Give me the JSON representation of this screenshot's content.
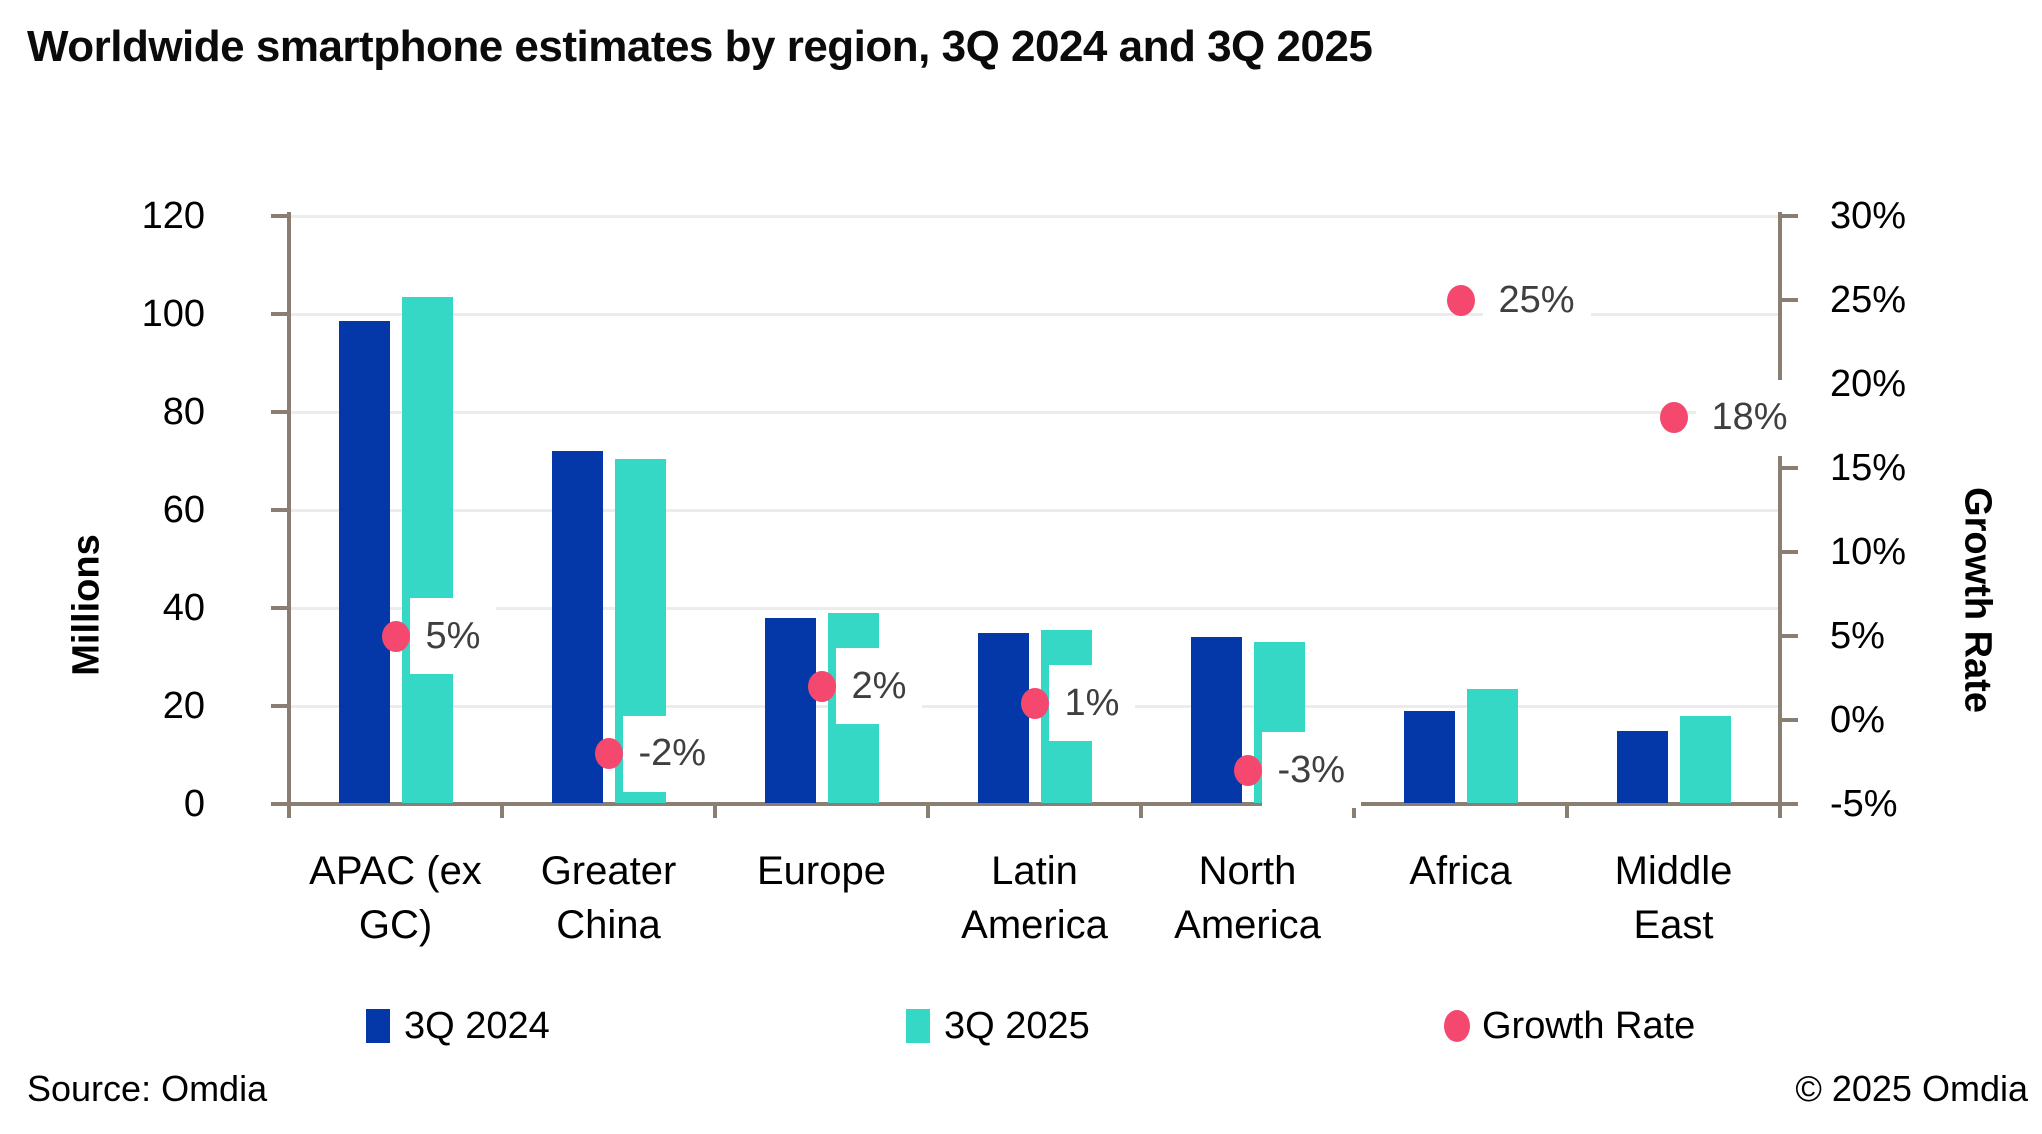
{
  "title": "Worldwide smartphone estimates by region, 3Q 2024 and 3Q 2025",
  "footer": {
    "source": "Source: Omdia",
    "copyright": "© 2025 Omdia"
  },
  "colors": {
    "bar_2024": "#0438a8",
    "bar_2025": "#35d8c5",
    "growth_dot": "#f4486f",
    "axis": "#8a7d72",
    "gridline": "#ececec",
    "data_label_text": "#3f3f3f"
  },
  "chart_data": {
    "type": "combo_bar_scatter",
    "title": "Worldwide smartphone estimates by region, 3Q 2024 and 3Q 2025",
    "categories": [
      "APAC (ex GC)",
      "Greater China",
      "Europe",
      "Latin America",
      "North America",
      "Africa",
      "Middle East"
    ],
    "category_label_lines": [
      [
        "APAC (ex",
        "GC)"
      ],
      [
        "Greater",
        "China"
      ],
      [
        "Europe"
      ],
      [
        "Latin",
        "America"
      ],
      [
        "North",
        "America"
      ],
      [
        "Africa"
      ],
      [
        "Middle",
        "East"
      ]
    ],
    "series": [
      {
        "name": "3Q 2024",
        "type": "bar",
        "axis": "left",
        "color_key": "bar_2024",
        "values": [
          98.5,
          72,
          38,
          35,
          34,
          19,
          15
        ]
      },
      {
        "name": "3Q 2025",
        "type": "bar",
        "axis": "left",
        "color_key": "bar_2025",
        "values": [
          103.5,
          70.5,
          39,
          35.5,
          33,
          23.5,
          18
        ]
      },
      {
        "name": "Growth Rate",
        "type": "scatter",
        "axis": "right",
        "color_key": "growth_dot",
        "values": [
          5,
          -2,
          2,
          1,
          -3,
          25,
          18
        ],
        "labels": [
          "5%",
          "-2%",
          "2%",
          "1%",
          "-3%",
          "25%",
          "18%"
        ]
      }
    ],
    "left_axis": {
      "title": "Millions",
      "min": 0,
      "max": 120,
      "step": 20,
      "tick_labels": [
        "0",
        "20",
        "40",
        "60",
        "80",
        "100",
        "120"
      ]
    },
    "right_axis": {
      "title": "Growth Rate",
      "min": -5,
      "max": 30,
      "step": 5,
      "tick_labels": [
        "-5%",
        "0%",
        "5%",
        "10%",
        "15%",
        "20%",
        "25%",
        "30%"
      ]
    },
    "legend": [
      {
        "label": "3Q 2024",
        "marker": "square",
        "color_key": "bar_2024"
      },
      {
        "label": "3Q 2025",
        "marker": "square",
        "color_key": "bar_2025"
      },
      {
        "label": "Growth Rate",
        "marker": "circle",
        "color_key": "growth_dot"
      }
    ],
    "grid": true,
    "legend_position": "bottom"
  }
}
